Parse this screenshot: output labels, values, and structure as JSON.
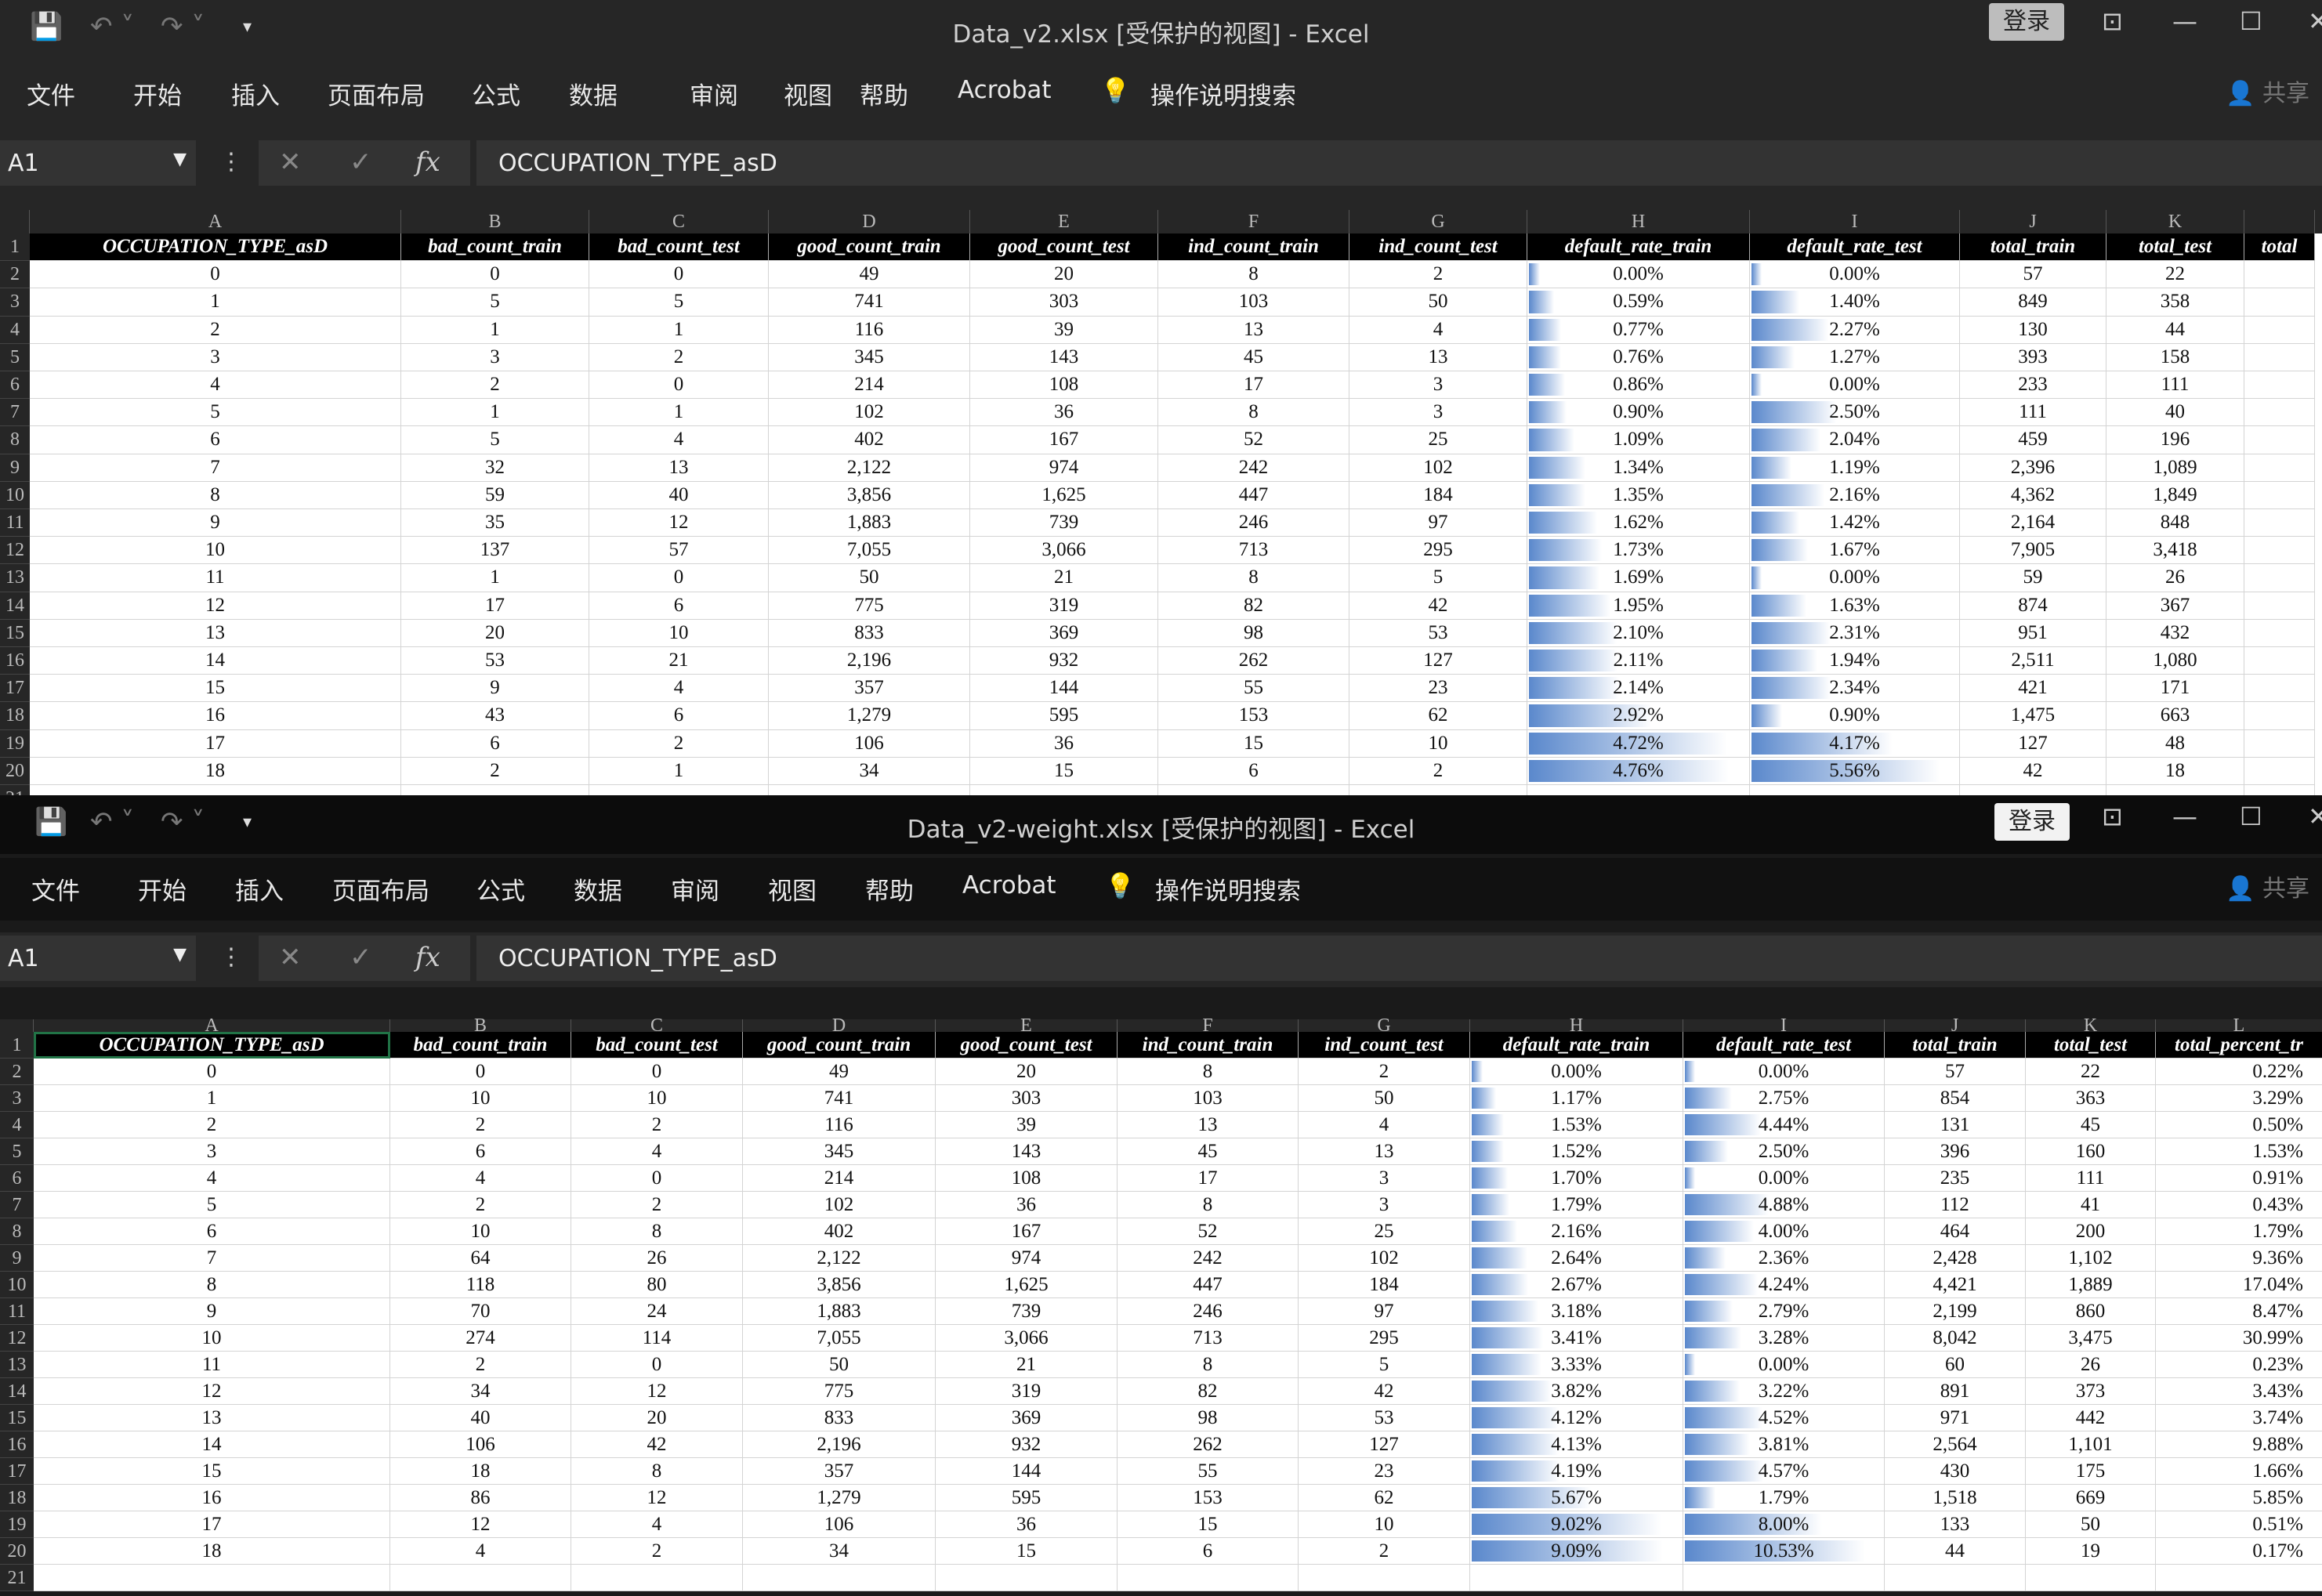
{
  "colors": {
    "accent": "#217346",
    "databar": "#5a88cc"
  },
  "windows": [
    {
      "title": "Data_v2.xlsx  [受保护的视图]  -  Excel",
      "login": "登录",
      "ribbon": [
        "文件",
        "开始",
        "插入",
        "页面布局",
        "公式",
        "数据",
        "审阅",
        "视图",
        "帮助",
        "Acrobat",
        "操作说明搜索"
      ],
      "share": "共享",
      "namebox": "A1",
      "formula": "OCCUPATION_TYPE_asD",
      "col_letters": [
        "A",
        "B",
        "C",
        "D",
        "E",
        "F",
        "G",
        "H",
        "I",
        "J",
        "K",
        ""
      ],
      "headers": [
        "OCCUPATION_TYPE_asD",
        "bad_count_train",
        "bad_count_test",
        "good_count_train",
        "good_count_test",
        "ind_count_train",
        "ind_count_test",
        "default_rate_train",
        "default_rate_test",
        "total_train",
        "total_test",
        "total"
      ],
      "rows": [
        [
          "0",
          "0",
          "0",
          "49",
          "20",
          "8",
          "2",
          "0.00%",
          "0.00%",
          "57",
          "22"
        ],
        [
          "1",
          "5",
          "5",
          "741",
          "303",
          "103",
          "50",
          "0.59%",
          "1.40%",
          "849",
          "358"
        ],
        [
          "2",
          "1",
          "1",
          "116",
          "39",
          "13",
          "4",
          "0.77%",
          "2.27%",
          "130",
          "44"
        ],
        [
          "3",
          "3",
          "2",
          "345",
          "143",
          "45",
          "13",
          "0.76%",
          "1.27%",
          "393",
          "158"
        ],
        [
          "4",
          "2",
          "0",
          "214",
          "108",
          "17",
          "3",
          "0.86%",
          "0.00%",
          "233",
          "111"
        ],
        [
          "5",
          "1",
          "1",
          "102",
          "36",
          "8",
          "3",
          "0.90%",
          "2.50%",
          "111",
          "40"
        ],
        [
          "6",
          "5",
          "4",
          "402",
          "167",
          "52",
          "25",
          "1.09%",
          "2.04%",
          "459",
          "196"
        ],
        [
          "7",
          "32",
          "13",
          "2,122",
          "974",
          "242",
          "102",
          "1.34%",
          "1.19%",
          "2,396",
          "1,089"
        ],
        [
          "8",
          "59",
          "40",
          "3,856",
          "1,625",
          "447",
          "184",
          "1.35%",
          "2.16%",
          "4,362",
          "1,849"
        ],
        [
          "9",
          "35",
          "12",
          "1,883",
          "739",
          "246",
          "97",
          "1.62%",
          "1.42%",
          "2,164",
          "848"
        ],
        [
          "10",
          "137",
          "57",
          "7,055",
          "3,066",
          "713",
          "295",
          "1.73%",
          "1.67%",
          "7,905",
          "3,418"
        ],
        [
          "11",
          "1",
          "0",
          "50",
          "21",
          "8",
          "5",
          "1.69%",
          "0.00%",
          "59",
          "26"
        ],
        [
          "12",
          "17",
          "6",
          "775",
          "319",
          "82",
          "42",
          "1.95%",
          "1.63%",
          "874",
          "367"
        ],
        [
          "13",
          "20",
          "10",
          "833",
          "369",
          "98",
          "53",
          "2.10%",
          "2.31%",
          "951",
          "432"
        ],
        [
          "14",
          "53",
          "21",
          "2,196",
          "932",
          "262",
          "127",
          "2.11%",
          "1.94%",
          "2,511",
          "1,080"
        ],
        [
          "15",
          "9",
          "4",
          "357",
          "144",
          "55",
          "23",
          "2.14%",
          "2.34%",
          "421",
          "171"
        ],
        [
          "16",
          "43",
          "6",
          "1,279",
          "595",
          "153",
          "62",
          "2.92%",
          "0.90%",
          "1,475",
          "663"
        ],
        [
          "17",
          "6",
          "2",
          "106",
          "36",
          "15",
          "10",
          "4.72%",
          "4.17%",
          "127",
          "48"
        ],
        [
          "18",
          "2",
          "1",
          "34",
          "15",
          "6",
          "2",
          "4.76%",
          "5.56%",
          "42",
          "18"
        ]
      ]
    },
    {
      "title": "Data_v2-weight.xlsx  [受保护的视图]  -  Excel",
      "login": "登录",
      "ribbon": [
        "文件",
        "开始",
        "插入",
        "页面布局",
        "公式",
        "数据",
        "审阅",
        "视图",
        "帮助",
        "Acrobat",
        "操作说明搜索"
      ],
      "share": "共享",
      "namebox": "A1",
      "formula": "OCCUPATION_TYPE_asD",
      "col_letters": [
        "A",
        "B",
        "C",
        "D",
        "E",
        "F",
        "G",
        "H",
        "I",
        "J",
        "K",
        "L"
      ],
      "headers": [
        "OCCUPATION_TYPE_asD",
        "bad_count_train",
        "bad_count_test",
        "good_count_train",
        "good_count_test",
        "ind_count_train",
        "ind_count_test",
        "default_rate_train",
        "default_rate_test",
        "total_train",
        "total_test",
        "total_percent_tr"
      ],
      "rows": [
        [
          "0",
          "0",
          "0",
          "49",
          "20",
          "8",
          "2",
          "0.00%",
          "0.00%",
          "57",
          "22",
          "0.22%"
        ],
        [
          "1",
          "10",
          "10",
          "741",
          "303",
          "103",
          "50",
          "1.17%",
          "2.75%",
          "854",
          "363",
          "3.29%"
        ],
        [
          "2",
          "2",
          "2",
          "116",
          "39",
          "13",
          "4",
          "1.53%",
          "4.44%",
          "131",
          "45",
          "0.50%"
        ],
        [
          "3",
          "6",
          "4",
          "345",
          "143",
          "45",
          "13",
          "1.52%",
          "2.50%",
          "396",
          "160",
          "1.53%"
        ],
        [
          "4",
          "4",
          "0",
          "214",
          "108",
          "17",
          "3",
          "1.70%",
          "0.00%",
          "235",
          "111",
          "0.91%"
        ],
        [
          "5",
          "2",
          "2",
          "102",
          "36",
          "8",
          "3",
          "1.79%",
          "4.88%",
          "112",
          "41",
          "0.43%"
        ],
        [
          "6",
          "10",
          "8",
          "402",
          "167",
          "52",
          "25",
          "2.16%",
          "4.00%",
          "464",
          "200",
          "1.79%"
        ],
        [
          "7",
          "64",
          "26",
          "2,122",
          "974",
          "242",
          "102",
          "2.64%",
          "2.36%",
          "2,428",
          "1,102",
          "9.36%"
        ],
        [
          "8",
          "118",
          "80",
          "3,856",
          "1,625",
          "447",
          "184",
          "2.67%",
          "4.24%",
          "4,421",
          "1,889",
          "17.04%"
        ],
        [
          "9",
          "70",
          "24",
          "1,883",
          "739",
          "246",
          "97",
          "3.18%",
          "2.79%",
          "2,199",
          "860",
          "8.47%"
        ],
        [
          "10",
          "274",
          "114",
          "7,055",
          "3,066",
          "713",
          "295",
          "3.41%",
          "3.28%",
          "8,042",
          "3,475",
          "30.99%"
        ],
        [
          "11",
          "2",
          "0",
          "50",
          "21",
          "8",
          "5",
          "3.33%",
          "0.00%",
          "60",
          "26",
          "0.23%"
        ],
        [
          "12",
          "34",
          "12",
          "775",
          "319",
          "82",
          "42",
          "3.82%",
          "3.22%",
          "891",
          "373",
          "3.43%"
        ],
        [
          "13",
          "40",
          "20",
          "833",
          "369",
          "98",
          "53",
          "4.12%",
          "4.52%",
          "971",
          "442",
          "3.74%"
        ],
        [
          "14",
          "106",
          "42",
          "2,196",
          "932",
          "262",
          "127",
          "4.13%",
          "3.81%",
          "2,564",
          "1,101",
          "9.88%"
        ],
        [
          "15",
          "18",
          "8",
          "357",
          "144",
          "55",
          "23",
          "4.19%",
          "4.57%",
          "430",
          "175",
          "1.66%"
        ],
        [
          "16",
          "86",
          "12",
          "1,279",
          "595",
          "153",
          "62",
          "5.67%",
          "1.79%",
          "1,518",
          "669",
          "5.85%"
        ],
        [
          "17",
          "12",
          "4",
          "106",
          "36",
          "15",
          "10",
          "9.02%",
          "8.00%",
          "133",
          "50",
          "0.51%"
        ],
        [
          "18",
          "4",
          "2",
          "34",
          "15",
          "6",
          "2",
          "9.09%",
          "10.53%",
          "44",
          "19",
          "0.17%"
        ]
      ]
    }
  ]
}
